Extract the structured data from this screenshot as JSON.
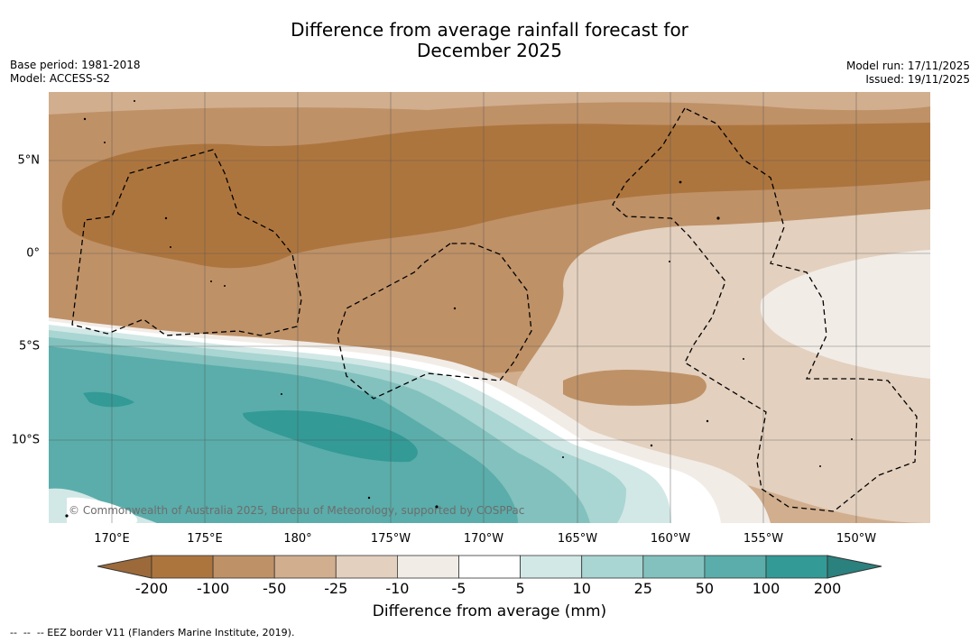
{
  "header": {
    "title_line1": "Difference from average rainfall forecast for",
    "title_line2": "December 2025",
    "base_period": "Base period: 1981-2018",
    "model": "Model: ACCESS-S2",
    "model_run": "Model run: 17/11/2025",
    "issued": "Issued: 19/11/2025"
  },
  "map": {
    "copyright": "© Commonwealth of Australia 2025, Bureau of Meteorology, supported by COSPPac",
    "longitude_ticks": [
      "170°E",
      "175°E",
      "180°",
      "175°W",
      "170°W",
      "165°W",
      "160°W",
      "155°W",
      "150°W"
    ],
    "latitude_ticks": [
      "5°N",
      "0°",
      "5°S",
      "10°S"
    ],
    "dashed_lines": "EEZ borders"
  },
  "legend": {
    "title": "Difference from average (mm)",
    "labels": [
      "-200",
      "-100",
      "-50",
      "-25",
      "-10",
      "-5",
      "5",
      "10",
      "25",
      "50",
      "100",
      "200"
    ],
    "colors": {
      "lt_neg200": "#9c6a3a",
      "neg200_neg100": "#ad753e",
      "neg100_neg50": "#bf9167",
      "neg50_neg25": "#d1ae8e",
      "neg25_neg10": "#e3d0be",
      "neg10_neg5": "#f2ece7",
      "neg5_5": "#ffffff",
      "5_10": "#d2e8e6",
      "10_25": "#a9d5d2",
      "25_50": "#82c1be",
      "50_100": "#5aadaa",
      "100_200": "#339a96",
      "gt_200": "#2a817e"
    }
  },
  "footnote": "--  --  -- EEZ border V11 (Flanders Marine Institute, 2019)."
}
